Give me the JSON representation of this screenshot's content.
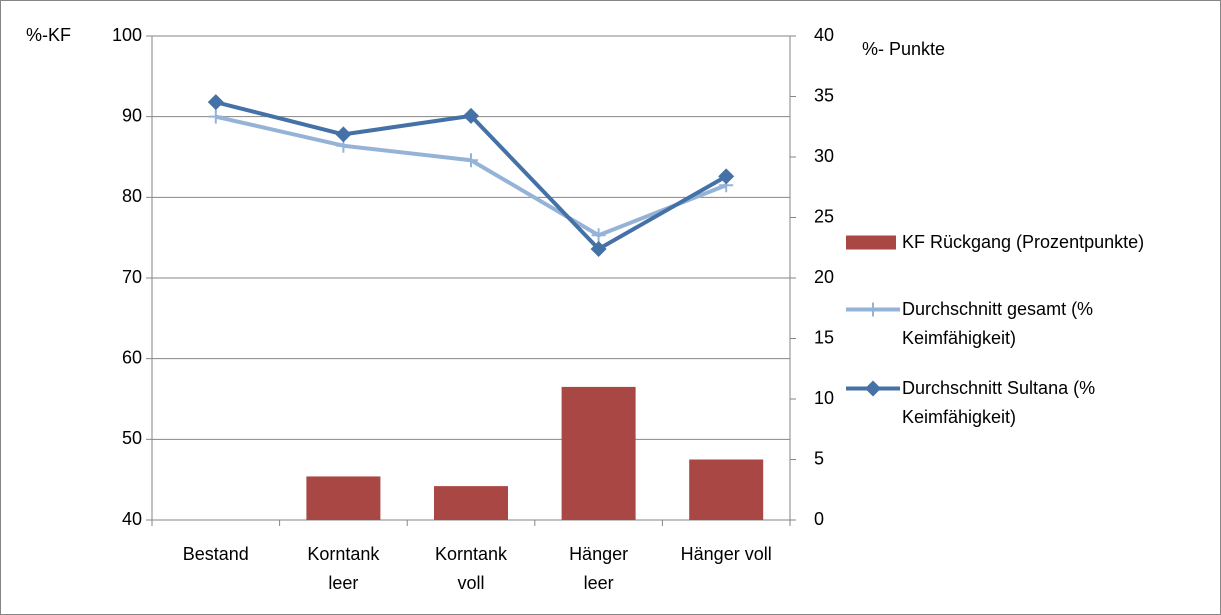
{
  "chart_data": {
    "type": "bar_line",
    "ylabel": "%-KF",
    "y2label": "%- Punkte",
    "categories": [
      "Bestand",
      "Korntank\nleer",
      "Korntank\nvoll",
      "Hänger\nleer",
      "Hänger voll"
    ],
    "series": [
      {
        "name": "KF Rückgang (Prozentpunkte)",
        "type": "bar",
        "axis": "y2",
        "color": "#a94744",
        "values": [
          0,
          3.6,
          2.8,
          11.0,
          5.0
        ]
      },
      {
        "name": "Durchschnitt gesamt (% Keimfähigkeit)",
        "type": "line",
        "marker": "plus",
        "color": "#95b3d7",
        "values": [
          90.0,
          86.4,
          84.6,
          75.3,
          81.5
        ]
      },
      {
        "name": "Durchschnitt Sultana (% Keimfähigkeit)",
        "type": "line",
        "marker": "diamond",
        "color": "#4471a6",
        "values": [
          91.8,
          87.8,
          90.1,
          73.6,
          82.6
        ]
      }
    ],
    "ylim": [
      40,
      100
    ],
    "yticks": [
      40,
      50,
      60,
      70,
      80,
      90,
      100
    ],
    "y2lim": [
      0,
      40
    ],
    "y2ticks": [
      0,
      5,
      10,
      15,
      20,
      25,
      30,
      35,
      40
    ],
    "grid": true,
    "legend": "right"
  }
}
